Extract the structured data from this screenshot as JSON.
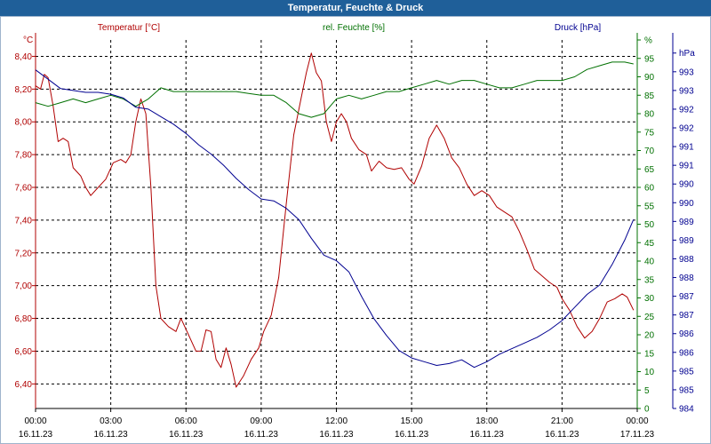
{
  "title": "Temperatur, Feuchte & Druck",
  "colors": {
    "temperature": "#b00000",
    "humidity": "#007000",
    "pressure": "#000090",
    "title_bg": "#1f5f99"
  },
  "chart_data": {
    "type": "line",
    "title": "Temperatur, Feuchte & Druck",
    "x_ticks": [
      {
        "hour": 0,
        "time": "00:00",
        "date": "16.11.23"
      },
      {
        "hour": 3,
        "time": "03:00",
        "date": "16.11.23"
      },
      {
        "hour": 6,
        "time": "06:00",
        "date": "16.11.23"
      },
      {
        "hour": 9,
        "time": "09:00",
        "date": "16.11.23"
      },
      {
        "hour": 12,
        "time": "12:00",
        "date": "16.11.23"
      },
      {
        "hour": 15,
        "time": "15:00",
        "date": "16.11.23"
      },
      {
        "hour": 18,
        "time": "18:00",
        "date": "16.11.23"
      },
      {
        "hour": 21,
        "time": "21:00",
        "date": "16.11.23"
      },
      {
        "hour": 24,
        "time": "00:00",
        "date": "17.11.23"
      }
    ],
    "xlim": [
      0,
      24
    ],
    "axes": {
      "temperature": {
        "label": "Temperatur [°C]",
        "unit": "°C",
        "ylim": [
          6.25,
          8.5
        ],
        "ticks": [
          {
            "v": 6.4,
            "l": "6,40"
          },
          {
            "v": 6.6,
            "l": "6,60"
          },
          {
            "v": 6.8,
            "l": "6,80"
          },
          {
            "v": 7.0,
            "l": "7,00"
          },
          {
            "v": 7.2,
            "l": "7,20"
          },
          {
            "v": 7.4,
            "l": "7,40"
          },
          {
            "v": 7.6,
            "l": "7,60"
          },
          {
            "v": 7.8,
            "l": "7,80"
          },
          {
            "v": 8.0,
            "l": "8,00"
          },
          {
            "v": 8.2,
            "l": "8,20"
          },
          {
            "v": 8.4,
            "l": "8,40"
          }
        ]
      },
      "humidity": {
        "label": "rel. Feuchte [%]",
        "unit": "%",
        "ylim": [
          0,
          100
        ],
        "ticks": [
          {
            "v": 0,
            "l": "0"
          },
          {
            "v": 5,
            "l": "5"
          },
          {
            "v": 10,
            "l": "10"
          },
          {
            "v": 15,
            "l": "15"
          },
          {
            "v": 20,
            "l": "20"
          },
          {
            "v": 25,
            "l": "25"
          },
          {
            "v": 30,
            "l": "30"
          },
          {
            "v": 35,
            "l": "35"
          },
          {
            "v": 40,
            "l": "40"
          },
          {
            "v": 45,
            "l": "45"
          },
          {
            "v": 50,
            "l": "50"
          },
          {
            "v": 55,
            "l": "55"
          },
          {
            "v": 60,
            "l": "60"
          },
          {
            "v": 65,
            "l": "65"
          },
          {
            "v": 70,
            "l": "70"
          },
          {
            "v": 75,
            "l": "75"
          },
          {
            "v": 80,
            "l": "80"
          },
          {
            "v": 85,
            "l": "85"
          },
          {
            "v": 90,
            "l": "90"
          },
          {
            "v": 95,
            "l": "95"
          },
          {
            "v": 100,
            "l": "%"
          }
        ]
      },
      "pressure": {
        "label": "Druck [hPa]",
        "unit": "hPa",
        "ylim": [
          984.0,
          993.85
        ],
        "ticks": [
          {
            "v": 984.0,
            "l": "984"
          },
          {
            "v": 984.5,
            "l": "985"
          },
          {
            "v": 985.0,
            "l": "985"
          },
          {
            "v": 985.5,
            "l": "986"
          },
          {
            "v": 986.0,
            "l": "986"
          },
          {
            "v": 986.5,
            "l": "987"
          },
          {
            "v": 987.0,
            "l": "987"
          },
          {
            "v": 987.5,
            "l": "988"
          },
          {
            "v": 988.0,
            "l": "988"
          },
          {
            "v": 988.5,
            "l": "989"
          },
          {
            "v": 989.0,
            "l": "989"
          },
          {
            "v": 989.5,
            "l": "990"
          },
          {
            "v": 990.0,
            "l": "990"
          },
          {
            "v": 990.5,
            "l": "991"
          },
          {
            "v": 991.0,
            "l": "991"
          },
          {
            "v": 991.5,
            "l": "992"
          },
          {
            "v": 992.0,
            "l": "992"
          },
          {
            "v": 992.5,
            "l": "993"
          },
          {
            "v": 993.0,
            "l": "993"
          },
          {
            "v": 993.5,
            "l": "hPa"
          }
        ]
      }
    },
    "series": [
      {
        "name": "Temperatur [°C]",
        "axis": "temperature",
        "points": [
          [
            0,
            8.22
          ],
          [
            0.2,
            8.2
          ],
          [
            0.35,
            8.29
          ],
          [
            0.5,
            8.27
          ],
          [
            0.7,
            8.1
          ],
          [
            0.9,
            7.88
          ],
          [
            1.1,
            7.9
          ],
          [
            1.3,
            7.88
          ],
          [
            1.5,
            7.72
          ],
          [
            1.8,
            7.67
          ],
          [
            2.0,
            7.6
          ],
          [
            2.2,
            7.55
          ],
          [
            2.5,
            7.6
          ],
          [
            2.8,
            7.65
          ],
          [
            3.1,
            7.75
          ],
          [
            3.4,
            7.77
          ],
          [
            3.6,
            7.75
          ],
          [
            3.8,
            7.8
          ],
          [
            4.0,
            8.0
          ],
          [
            4.2,
            8.14
          ],
          [
            4.4,
            8.05
          ],
          [
            4.6,
            7.6
          ],
          [
            4.8,
            7.0
          ],
          [
            5.0,
            6.8
          ],
          [
            5.3,
            6.75
          ],
          [
            5.6,
            6.72
          ],
          [
            5.8,
            6.8
          ],
          [
            6.1,
            6.7
          ],
          [
            6.4,
            6.6
          ],
          [
            6.6,
            6.6
          ],
          [
            6.8,
            6.73
          ],
          [
            7.0,
            6.72
          ],
          [
            7.2,
            6.55
          ],
          [
            7.4,
            6.5
          ],
          [
            7.6,
            6.62
          ],
          [
            7.8,
            6.52
          ],
          [
            8.0,
            6.38
          ],
          [
            8.3,
            6.45
          ],
          [
            8.6,
            6.55
          ],
          [
            8.9,
            6.62
          ],
          [
            9.1,
            6.72
          ],
          [
            9.4,
            6.82
          ],
          [
            9.7,
            7.05
          ],
          [
            10.0,
            7.5
          ],
          [
            10.3,
            7.92
          ],
          [
            10.6,
            8.15
          ],
          [
            10.8,
            8.3
          ],
          [
            11.0,
            8.42
          ],
          [
            11.2,
            8.3
          ],
          [
            11.4,
            8.25
          ],
          [
            11.6,
            8.0
          ],
          [
            11.8,
            7.88
          ],
          [
            12.0,
            8.0
          ],
          [
            12.2,
            8.05
          ],
          [
            12.4,
            8.0
          ],
          [
            12.6,
            7.9
          ],
          [
            12.9,
            7.83
          ],
          [
            13.2,
            7.8
          ],
          [
            13.4,
            7.7
          ],
          [
            13.7,
            7.76
          ],
          [
            14.0,
            7.72
          ],
          [
            14.3,
            7.71
          ],
          [
            14.6,
            7.72
          ],
          [
            14.9,
            7.65
          ],
          [
            15.1,
            7.62
          ],
          [
            15.4,
            7.73
          ],
          [
            15.7,
            7.9
          ],
          [
            16.0,
            7.98
          ],
          [
            16.3,
            7.9
          ],
          [
            16.6,
            7.78
          ],
          [
            16.9,
            7.72
          ],
          [
            17.2,
            7.62
          ],
          [
            17.5,
            7.55
          ],
          [
            17.8,
            7.58
          ],
          [
            18.1,
            7.55
          ],
          [
            18.4,
            7.48
          ],
          [
            18.7,
            7.45
          ],
          [
            19.0,
            7.42
          ],
          [
            19.3,
            7.33
          ],
          [
            19.6,
            7.22
          ],
          [
            19.9,
            7.1
          ],
          [
            20.2,
            7.06
          ],
          [
            20.5,
            7.02
          ],
          [
            20.8,
            6.99
          ],
          [
            21.0,
            6.92
          ],
          [
            21.3,
            6.85
          ],
          [
            21.6,
            6.75
          ],
          [
            21.9,
            6.68
          ],
          [
            22.2,
            6.72
          ],
          [
            22.5,
            6.8
          ],
          [
            22.8,
            6.9
          ],
          [
            23.1,
            6.92
          ],
          [
            23.4,
            6.95
          ],
          [
            23.6,
            6.93
          ],
          [
            23.85,
            6.85
          ]
        ]
      },
      {
        "name": "rel. Feuchte [%]",
        "axis": "humidity",
        "points": [
          [
            0,
            83
          ],
          [
            0.5,
            82
          ],
          [
            1.0,
            83
          ],
          [
            1.5,
            84
          ],
          [
            2.0,
            83
          ],
          [
            2.5,
            84
          ],
          [
            3.0,
            85
          ],
          [
            3.5,
            84
          ],
          [
            4.0,
            82
          ],
          [
            4.5,
            84
          ],
          [
            5.0,
            87
          ],
          [
            5.5,
            86
          ],
          [
            6.0,
            86
          ],
          [
            6.5,
            86
          ],
          [
            7.0,
            86
          ],
          [
            7.5,
            86
          ],
          [
            8.0,
            86
          ],
          [
            8.5,
            85.5
          ],
          [
            9.0,
            85
          ],
          [
            9.5,
            85
          ],
          [
            10.0,
            83
          ],
          [
            10.5,
            80
          ],
          [
            11.0,
            79
          ],
          [
            11.5,
            80
          ],
          [
            12.0,
            84
          ],
          [
            12.5,
            85
          ],
          [
            13.0,
            84
          ],
          [
            13.5,
            85
          ],
          [
            14.0,
            86
          ],
          [
            14.5,
            86
          ],
          [
            15.0,
            87
          ],
          [
            15.5,
            88
          ],
          [
            16.0,
            89
          ],
          [
            16.5,
            88
          ],
          [
            17.0,
            89
          ],
          [
            17.5,
            89
          ],
          [
            18.0,
            88
          ],
          [
            18.5,
            87
          ],
          [
            19.0,
            87
          ],
          [
            19.5,
            88
          ],
          [
            20.0,
            89
          ],
          [
            20.5,
            89
          ],
          [
            21.0,
            89
          ],
          [
            21.5,
            90
          ],
          [
            22.0,
            92
          ],
          [
            22.5,
            93
          ],
          [
            23.0,
            94
          ],
          [
            23.5,
            94
          ],
          [
            23.85,
            93.5
          ]
        ]
      },
      {
        "name": "Druck [hPa]",
        "axis": "pressure",
        "points": [
          [
            0,
            993.05
          ],
          [
            0.5,
            992.8
          ],
          [
            1.0,
            992.55
          ],
          [
            1.5,
            992.5
          ],
          [
            2.0,
            992.45
          ],
          [
            2.5,
            992.45
          ],
          [
            3.0,
            992.4
          ],
          [
            3.5,
            992.3
          ],
          [
            4.0,
            992.05
          ],
          [
            4.5,
            992.0
          ],
          [
            5.0,
            991.8
          ],
          [
            5.5,
            991.6
          ],
          [
            6.0,
            991.35
          ],
          [
            6.5,
            991.05
          ],
          [
            7.0,
            990.8
          ],
          [
            7.5,
            990.5
          ],
          [
            8.0,
            990.15
          ],
          [
            8.5,
            989.85
          ],
          [
            9.0,
            989.6
          ],
          [
            9.5,
            989.55
          ],
          [
            10.0,
            989.35
          ],
          [
            10.5,
            989.05
          ],
          [
            11.0,
            988.55
          ],
          [
            11.5,
            988.1
          ],
          [
            12.0,
            987.95
          ],
          [
            12.5,
            987.65
          ],
          [
            13.0,
            987.0
          ],
          [
            13.5,
            986.4
          ],
          [
            14.0,
            985.95
          ],
          [
            14.5,
            985.55
          ],
          [
            15.0,
            985.35
          ],
          [
            15.5,
            985.25
          ],
          [
            16.0,
            985.15
          ],
          [
            16.5,
            985.2
          ],
          [
            17.0,
            985.3
          ],
          [
            17.5,
            985.1
          ],
          [
            18.0,
            985.25
          ],
          [
            18.5,
            985.45
          ],
          [
            19.0,
            985.6
          ],
          [
            19.5,
            985.75
          ],
          [
            20.0,
            985.9
          ],
          [
            20.5,
            986.1
          ],
          [
            21.0,
            986.35
          ],
          [
            21.5,
            986.7
          ],
          [
            22.0,
            987.05
          ],
          [
            22.5,
            987.3
          ],
          [
            23.0,
            987.85
          ],
          [
            23.5,
            988.5
          ],
          [
            23.85,
            989.05
          ]
        ]
      }
    ]
  }
}
